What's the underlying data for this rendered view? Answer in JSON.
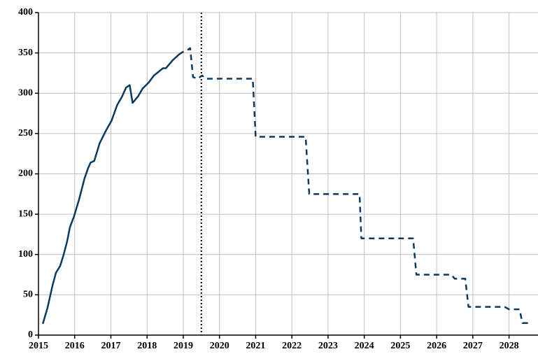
{
  "chart_data": {
    "type": "line",
    "xlim": [
      2015,
      2028.8
    ],
    "xticks": [
      2015,
      2016,
      2017,
      2018,
      2019,
      2020,
      2021,
      2022,
      2023,
      2024,
      2025,
      2026,
      2027,
      2028
    ],
    "ylim": [
      0,
      400
    ],
    "yticks": [
      0,
      50,
      100,
      150,
      200,
      250,
      300,
      350,
      400
    ],
    "grid": true,
    "vline": 2019.5,
    "series": [
      {
        "color": "#0b3a5e",
        "dash": false,
        "x": [
          2015.12,
          2015.25,
          2015.38,
          2015.48,
          2015.6,
          2015.69,
          2015.79,
          2015.87,
          2015.98,
          2016.12,
          2016.27,
          2016.37,
          2016.44,
          2016.54,
          2016.69,
          2016.88,
          2017.02,
          2017.17,
          2017.31,
          2017.42,
          2017.52,
          2017.6,
          2017.75,
          2017.88,
          2018.04,
          2018.19,
          2018.33,
          2018.44,
          2018.52,
          2018.71,
          2018.88
        ],
        "values": [
          14,
          34,
          60,
          77,
          86,
          99,
          116,
          134,
          147,
          168,
          194,
          207,
          214,
          216,
          238,
          255,
          266,
          285,
          296,
          307,
          310,
          288,
          296,
          306,
          313,
          322,
          327,
          331,
          331,
          341,
          348
        ]
      },
      {
        "color": "#0b3a5e",
        "dash": true,
        "x": [
          2018.88,
          2018.98,
          2019.1,
          2019.19,
          2019.27,
          2019.4,
          2019.52,
          2019.62,
          2020.92,
          2021.0,
          2022.38,
          2022.48,
          2023.87,
          2023.92,
          2025.35,
          2025.44,
          2026.4,
          2026.5,
          2026.79,
          2026.88,
          2027.88,
          2028.0,
          2028.29,
          2028.37,
          2028.62
        ],
        "values": [
          348,
          351,
          353,
          356,
          320,
          318,
          322,
          318,
          318,
          246,
          246,
          175,
          175,
          120,
          120,
          75,
          75,
          70,
          70,
          35,
          35,
          32,
          32,
          15,
          15
        ]
      }
    ]
  }
}
